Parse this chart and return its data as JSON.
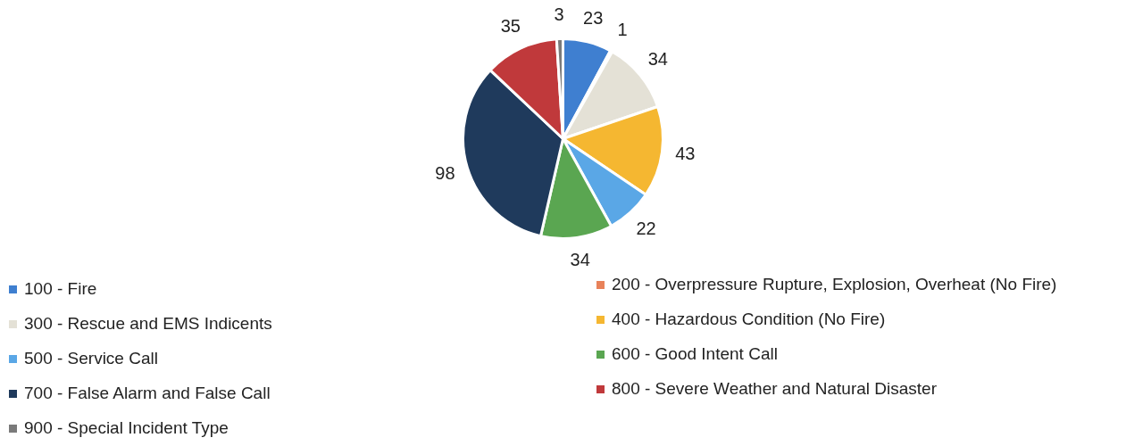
{
  "chart_data": {
    "type": "pie",
    "categories": [
      "100 - Fire",
      "200 - Overpressure Rupture, Explosion, Overheat (No Fire)",
      "300 - Rescue and EMS Indicents",
      "400 - Hazardous Condition (No Fire)",
      "500 - Service Call",
      "600 - Good Intent Call",
      "700 - False Alarm and False Call",
      "800 - Severe Weather and Natural Disaster",
      "900 - Special Incident Type"
    ],
    "values": [
      23,
      1,
      34,
      43,
      22,
      34,
      98,
      35,
      3
    ],
    "colors": [
      "#3f7fd0",
      "#e8825a",
      "#e4e1d6",
      "#f5b731",
      "#5aa7e6",
      "#5aa651",
      "#1f3a5c",
      "#c0393b",
      "#7a7a7a"
    ],
    "data_labels": true,
    "legend": "bottom"
  }
}
